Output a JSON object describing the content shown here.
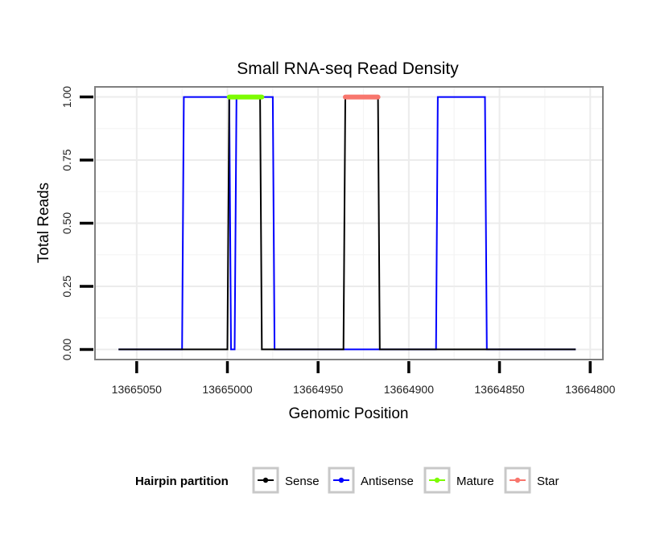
{
  "chart_data": {
    "type": "line",
    "title": "Small RNA-seq Read Density",
    "xlabel": "Genomic Position",
    "ylabel": "Total Reads",
    "x_reversed": true,
    "xlim": [
      13665073,
      13664793
    ],
    "ylim": [
      -0.04,
      1.04
    ],
    "x_ticks": [
      13665050,
      13665000,
      13664950,
      13664900,
      13664850,
      13664800
    ],
    "x_tick_labels": [
      "13665050",
      "13665000",
      "13664950",
      "13664900",
      "13664850",
      "13664800"
    ],
    "y_ticks": [
      0,
      0.25,
      0.5,
      0.75,
      1
    ],
    "y_tick_labels": [
      "0.00",
      "0.25",
      "0.50",
      "0.75",
      "1.00"
    ],
    "grid": true,
    "legend_position": "bottom",
    "legend_title": "Hairpin partition",
    "series": [
      {
        "name": "Antisense",
        "color": "#0000ff",
        "x": [
          13665060,
          13665025,
          13665024,
          13664999,
          13664998,
          13664996,
          13664995,
          13664993,
          13664992,
          13664975,
          13664974,
          13664885,
          13664884,
          13664858,
          13664857,
          13664808
        ],
        "values": [
          0,
          0,
          1,
          1,
          0,
          0,
          1,
          1,
          1,
          1,
          0,
          0,
          1,
          1,
          0,
          0
        ]
      },
      {
        "name": "Sense",
        "color": "#000000",
        "x": [
          13665060,
          13665000,
          13664999,
          13664982,
          13664981,
          13664936,
          13664935,
          13664917,
          13664916,
          13664808
        ],
        "values": [
          0,
          0,
          1,
          1,
          0,
          0,
          1,
          1,
          0,
          0
        ]
      },
      {
        "name": "Mature",
        "color": "#7cfc00",
        "x": [
          13664999,
          13664981
        ],
        "values": [
          1,
          1
        ]
      },
      {
        "name": "Star",
        "color": "#f8766d",
        "x": [
          13664935,
          13664917
        ],
        "values": [
          1,
          1
        ]
      }
    ],
    "legend_items": [
      {
        "label": "Sense",
        "color": "#000000"
      },
      {
        "label": "Antisense",
        "color": "#0000ff"
      },
      {
        "label": "Mature",
        "color": "#7cfc00"
      },
      {
        "label": "Star",
        "color": "#f8766d"
      }
    ]
  }
}
